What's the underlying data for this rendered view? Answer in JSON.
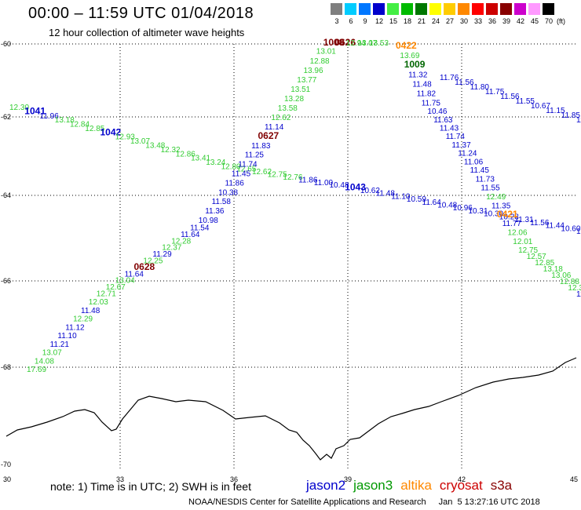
{
  "header": {
    "title": "00:00 – 11:59 UTC 01/04/2018",
    "subtitle": "12 hour collection of altimeter wave heights"
  },
  "legend": {
    "unit": "(ft)",
    "bins": [
      {
        "label": "3",
        "color": "#7f7f7f"
      },
      {
        "label": "6",
        "color": "#00ccff"
      },
      {
        "label": "9",
        "color": "#0077ff"
      },
      {
        "label": "12",
        "color": "#0000cc"
      },
      {
        "label": "15",
        "color": "#44ee44"
      },
      {
        "label": "18",
        "color": "#00bb00"
      },
      {
        "label": "21",
        "color": "#007700"
      },
      {
        "label": "24",
        "color": "#ffff00"
      },
      {
        "label": "27",
        "color": "#ffcc00"
      },
      {
        "label": "30",
        "color": "#ff8800"
      },
      {
        "label": "33",
        "color": "#ff0000"
      },
      {
        "label": "36",
        "color": "#cc0000"
      },
      {
        "label": "39",
        "color": "#880000"
      },
      {
        "label": "42",
        "color": "#cc00cc"
      },
      {
        "label": "45",
        "color": "#ff99ff"
      },
      {
        "label": "70",
        "color": "#000000"
      }
    ]
  },
  "axes": {
    "lat_labels": [
      "-60",
      "-62",
      "-64",
      "-66",
      "-68",
      "-70"
    ],
    "lon_labels": [
      "30",
      "33",
      "36",
      "39",
      "42",
      "45"
    ]
  },
  "colors": {
    "blue": "#0000cc",
    "green": "#33cc33",
    "darkred": "#800000",
    "orange": "#ff8800",
    "darkgreen": "#006600"
  },
  "tracks": [
    {
      "name": "track-a",
      "points": [
        {
          "v": "12.30",
          "c": "green"
        },
        {
          "v": "1041",
          "c": "blue",
          "time": true
        },
        {
          "v": "11.96",
          "c": "blue"
        },
        {
          "v": "13.18",
          "c": "green"
        },
        {
          "v": "12.84",
          "c": "green"
        },
        {
          "v": "12.85",
          "c": "green"
        },
        {
          "v": "1042",
          "c": "blue",
          "time": true
        },
        {
          "v": "12.93",
          "c": "green"
        },
        {
          "v": "13.07",
          "c": "green"
        },
        {
          "v": "13.48",
          "c": "green"
        },
        {
          "v": "12.32",
          "c": "green"
        },
        {
          "v": "12.86",
          "c": "green"
        },
        {
          "v": "13.41",
          "c": "green"
        },
        {
          "v": "13.24",
          "c": "green"
        },
        {
          "v": "12.80",
          "c": "green"
        },
        {
          "v": "12.65",
          "c": "green"
        },
        {
          "v": "12.62",
          "c": "green"
        },
        {
          "v": "12.75",
          "c": "green"
        },
        {
          "v": "12.76",
          "c": "green"
        },
        {
          "v": "11.86",
          "c": "blue"
        },
        {
          "v": "11.00",
          "c": "blue"
        },
        {
          "v": "10.48",
          "c": "blue"
        },
        {
          "v": "1043",
          "c": "blue",
          "time": true
        },
        {
          "v": "10.62",
          "c": "blue"
        },
        {
          "v": "11.48",
          "c": "blue"
        },
        {
          "v": "11.10",
          "c": "blue"
        },
        {
          "v": "10.59",
          "c": "blue"
        },
        {
          "v": "11.64",
          "c": "blue"
        },
        {
          "v": "10.48",
          "c": "blue"
        },
        {
          "v": "10.96",
          "c": "blue"
        },
        {
          "v": "10.31",
          "c": "blue"
        },
        {
          "v": "10.30",
          "c": "blue"
        },
        {
          "v": "10.28",
          "c": "blue"
        },
        {
          "v": "11.31",
          "c": "blue"
        },
        {
          "v": "11.56",
          "c": "blue"
        },
        {
          "v": "11.44",
          "c": "blue"
        },
        {
          "v": "10.60",
          "c": "blue"
        },
        {
          "v": "12",
          "c": "blue"
        }
      ]
    },
    {
      "name": "track-b",
      "points": [
        {
          "v": "17.69",
          "c": "green"
        },
        {
          "v": "14.08",
          "c": "green"
        },
        {
          "v": "13.07",
          "c": "green"
        },
        {
          "v": "11.21",
          "c": "blue"
        },
        {
          "v": "11.10",
          "c": "blue"
        },
        {
          "v": "11.12",
          "c": "blue"
        },
        {
          "v": "12.29",
          "c": "green"
        },
        {
          "v": "11.48",
          "c": "blue"
        },
        {
          "v": "12.03",
          "c": "green"
        },
        {
          "v": "12.71",
          "c": "green"
        },
        {
          "v": "12.67",
          "c": "green"
        },
        {
          "v": "13.04",
          "c": "green"
        },
        {
          "v": "11.64",
          "c": "blue"
        },
        {
          "v": "0628",
          "c": "darkred",
          "time": true
        },
        {
          "v": "12.25",
          "c": "green"
        },
        {
          "v": "11.29",
          "c": "blue"
        },
        {
          "v": "12.37",
          "c": "green"
        },
        {
          "v": "12.28",
          "c": "green"
        },
        {
          "v": "11.64",
          "c": "blue"
        },
        {
          "v": "11.54",
          "c": "blue"
        },
        {
          "v": "10.98",
          "c": "blue"
        },
        {
          "v": "11.36",
          "c": "blue"
        },
        {
          "v": "11.58",
          "c": "blue"
        },
        {
          "v": "10.38",
          "c": "blue"
        },
        {
          "v": "11.86",
          "c": "blue"
        },
        {
          "v": "11.45",
          "c": "blue"
        },
        {
          "v": "11.74",
          "c": "blue"
        },
        {
          "v": "11.25",
          "c": "blue"
        },
        {
          "v": "11.83",
          "c": "blue"
        },
        {
          "v": "0627",
          "c": "darkred",
          "time": true
        },
        {
          "v": "11.14",
          "c": "blue"
        },
        {
          "v": "12.62",
          "c": "green"
        },
        {
          "v": "13.58",
          "c": "green"
        },
        {
          "v": "13.28",
          "c": "green"
        },
        {
          "v": "13.51",
          "c": "green"
        },
        {
          "v": "13.77",
          "c": "green"
        },
        {
          "v": "13.96",
          "c": "green"
        },
        {
          "v": "12.88",
          "c": "green"
        },
        {
          "v": "13.01",
          "c": "green"
        },
        {
          "v": "1008",
          "c": "darkred",
          "time": true
        },
        {
          "v": "0626",
          "c": "darkred",
          "time": true
        },
        {
          "v": "12.94",
          "c": "green"
        },
        {
          "v": "13.07",
          "c": "green"
        },
        {
          "v": "13.53",
          "c": "green"
        }
      ]
    },
    {
      "name": "track-c",
      "points": [
        {
          "v": "0422",
          "c": "orange",
          "time": true
        },
        {
          "v": "13.69",
          "c": "green"
        },
        {
          "v": "1009",
          "c": "darkgreen",
          "time": true
        },
        {
          "v": "11.32",
          "c": "blue"
        },
        {
          "v": "11.48",
          "c": "blue"
        },
        {
          "v": "11.82",
          "c": "blue"
        },
        {
          "v": "11.75",
          "c": "blue"
        },
        {
          "v": "10.46",
          "c": "blue"
        },
        {
          "v": "11.63",
          "c": "blue"
        },
        {
          "v": "11.43",
          "c": "blue"
        },
        {
          "v": "11.74",
          "c": "blue"
        },
        {
          "v": "11.37",
          "c": "blue"
        },
        {
          "v": "11.24",
          "c": "blue"
        },
        {
          "v": "11.06",
          "c": "blue"
        },
        {
          "v": "11.45",
          "c": "blue"
        },
        {
          "v": "11.73",
          "c": "blue"
        },
        {
          "v": "11.55",
          "c": "blue"
        },
        {
          "v": "12.49",
          "c": "green"
        },
        {
          "v": "11.35",
          "c": "blue"
        },
        {
          "v": "0421",
          "c": "orange",
          "time": true
        },
        {
          "v": "11.77",
          "c": "blue"
        },
        {
          "v": "12.06",
          "c": "green"
        },
        {
          "v": "12.01",
          "c": "green"
        },
        {
          "v": "12.75",
          "c": "green"
        },
        {
          "v": "12.57",
          "c": "green"
        },
        {
          "v": "12.85",
          "c": "green"
        },
        {
          "v": "13.18",
          "c": "green"
        },
        {
          "v": "13.06",
          "c": "green"
        },
        {
          "v": "12.88",
          "c": "green"
        },
        {
          "v": "12.32",
          "c": "green"
        },
        {
          "v": "11.4",
          "c": "blue"
        }
      ]
    },
    {
      "name": "track-d",
      "points": [
        {
          "v": "11.76",
          "c": "blue"
        },
        {
          "v": "11.56",
          "c": "blue"
        },
        {
          "v": "11.80",
          "c": "blue"
        },
        {
          "v": "11.75",
          "c": "blue"
        },
        {
          "v": "11.56",
          "c": "blue"
        },
        {
          "v": "11.55",
          "c": "blue"
        },
        {
          "v": "10.67",
          "c": "blue"
        },
        {
          "v": "11.15",
          "c": "blue"
        },
        {
          "v": "11.85",
          "c": "blue"
        },
        {
          "v": "11.27",
          "c": "blue"
        }
      ]
    }
  ],
  "footer": {
    "note": "note: 1) Time is in UTC; 2) SWH is in feet",
    "satellites": [
      {
        "name": "jason2",
        "color": "#0000cc"
      },
      {
        "name": "jason3",
        "color": "#009900"
      },
      {
        "name": "altika",
        "color": "#ff8800"
      },
      {
        "name": "cryosat",
        "color": "#cc0000"
      },
      {
        "name": "s3a",
        "color": "#880000"
      }
    ],
    "credit": "NOAA/NESDIS Center for Satellite Applications and Research",
    "timestamp": "Jan  5 13:27:16 UTC 2018"
  }
}
